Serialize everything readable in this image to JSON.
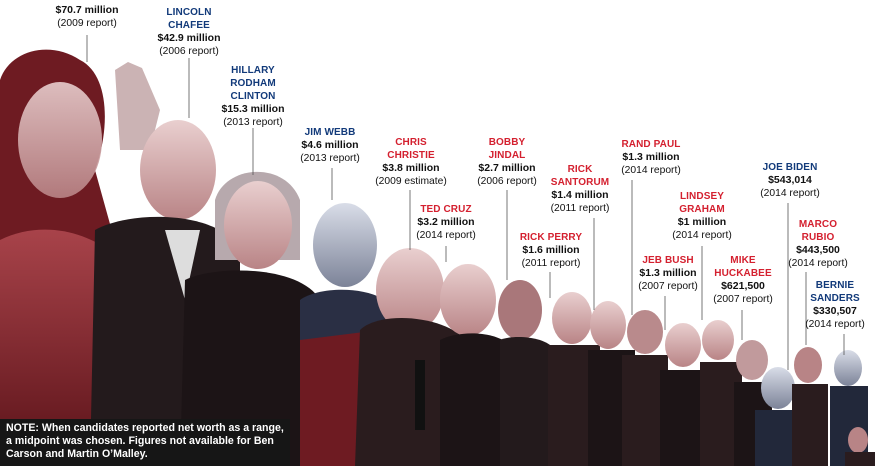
{
  "candidates": [
    {
      "name": "",
      "amount": "$70.7 million",
      "report": "(2009 report)",
      "party": "rep"
    },
    {
      "name": "LINCOLN CHAFEE",
      "amount": "$42.9 million",
      "report": "(2006 report)",
      "party": "dem"
    },
    {
      "name": "HILLARY RODHAM CLINTON",
      "amount": "$15.3 million",
      "report": "(2013 report)",
      "party": "dem"
    },
    {
      "name": "JIM WEBB",
      "amount": "$4.6 million",
      "report": "(2013 report)",
      "party": "dem"
    },
    {
      "name": "CHRIS CHRISTIE",
      "amount": "$3.8 million",
      "report": "(2009 estimate)",
      "party": "rep"
    },
    {
      "name": "BOBBY JINDAL",
      "amount": "$2.7 million",
      "report": "(2006 report)",
      "party": "rep"
    },
    {
      "name": "TED CRUZ",
      "amount": "$3.2 million",
      "report": "(2014 report)",
      "party": "rep"
    },
    {
      "name": "RICK SANTORUM",
      "amount": "$1.4 million",
      "report": "(2011 report)",
      "party": "rep"
    },
    {
      "name": "RICK PERRY",
      "amount": "$1.6 million",
      "report": "(2011 report)",
      "party": "rep"
    },
    {
      "name": "RAND PAUL",
      "amount": "$1.3 million",
      "report": "(2014 report)",
      "party": "rep"
    },
    {
      "name": "LINDSEY GRAHAM",
      "amount": "$1 million",
      "report": "(2014 report)",
      "party": "rep"
    },
    {
      "name": "JEB BUSH",
      "amount": "$1.3 million",
      "report": "(2007 report)",
      "party": "rep"
    },
    {
      "name": "MIKE HUCKABEE",
      "amount": "$621,500",
      "report": "(2007 report)",
      "party": "rep"
    },
    {
      "name": "JOE BIDEN",
      "amount": "$543,014",
      "report": "(2014 report)",
      "party": "dem"
    },
    {
      "name": "MARCO RUBIO",
      "amount": "$443,500",
      "report": "(2014 report)",
      "party": "rep"
    },
    {
      "name": "BERNIE SANDERS",
      "amount": "$330,507",
      "report": "(2014 report)",
      "party": "dem"
    }
  ],
  "note": "NOTE: When candidates reported net worth as a range, a midpoint was chosen. Figures not available for Ben Carson and Martin O’Malley.",
  "colors": {
    "democrat": "#123a7a",
    "republican": "#d4202f",
    "photo_red": "#7a1f26",
    "photo_dark": "#1a1214"
  }
}
